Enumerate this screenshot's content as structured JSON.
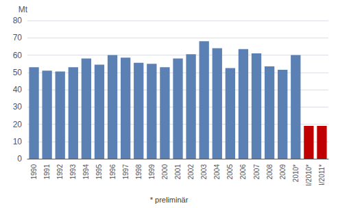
{
  "chart_data": {
    "type": "bar",
    "categories": [
      "1990",
      "1991",
      "1992",
      "1993",
      "1994",
      "1995",
      "1996",
      "1997",
      "1998",
      "1999",
      "2000",
      "2001",
      "2002",
      "2003",
      "2004",
      "2005",
      "2006",
      "2007",
      "2008",
      "2009",
      "2010*",
      "I/2010*",
      "I/2011*"
    ],
    "values": [
      53,
      51,
      50.5,
      53,
      58,
      54.5,
      60,
      58.5,
      55.5,
      55,
      53,
      58,
      60.5,
      68,
      64,
      52.5,
      63.5,
      61,
      53.5,
      51.5,
      60,
      19,
      19
    ],
    "colors": [
      "#5b80b4",
      "#5b80b4",
      "#5b80b4",
      "#5b80b4",
      "#5b80b4",
      "#5b80b4",
      "#5b80b4",
      "#5b80b4",
      "#5b80b4",
      "#5b80b4",
      "#5b80b4",
      "#5b80b4",
      "#5b80b4",
      "#5b80b4",
      "#5b80b4",
      "#5b80b4",
      "#5b80b4",
      "#5b80b4",
      "#5b80b4",
      "#5b80b4",
      "#5b80b4",
      "#c00000",
      "#c00000"
    ],
    "ylabel": "Mt",
    "annotation": "* preliminär",
    "ylim": [
      0,
      80
    ],
    "yticks": [
      0,
      10,
      20,
      30,
      40,
      50,
      60,
      70,
      80
    ],
    "grid": true
  }
}
